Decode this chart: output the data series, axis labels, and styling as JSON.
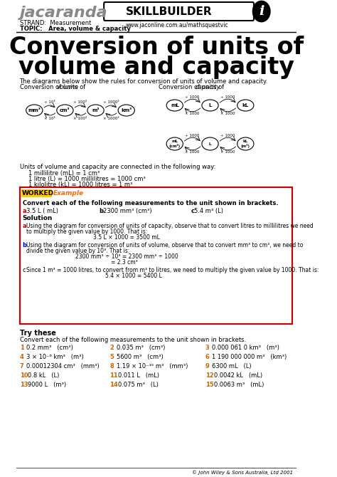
{
  "title_line1": "Conversion of units of",
  "title_line2": "volume and capacity",
  "header_jacaranda": "jacaranda",
  "header_skillbuilder": "SKILLBUILDER",
  "header_strand": "STRAND:  Measurement",
  "header_topic": "TOPIC:   Area, volume & capacity",
  "header_url": "www.jaconline.com.au/mathsquestvic",
  "bg_color": "#ffffff",
  "border_color": "#cc0000",
  "worked_color": "#ffcc00",
  "example_color": "#ff6600",
  "label_color_a": "#cc0000",
  "label_color_b": "#0000cc",
  "section_intro": "The diagrams below show the rules for conversion of units of volume and capacity.",
  "vol_label": "Conversion of units of volume",
  "cap_label": "Conversion of units of capacity",
  "connections_line1": "Units of volume and capacity are connected in the following way:",
  "connections_line2": "1 millilitre (mL) = 1 cm³",
  "connections_line3": "1 litre (L) = 1000 millilitres = 1000 cm³",
  "connections_line4": "1 kilolitre (kL) = 1000 litres = 1 m³",
  "worked_example_title": "Convert each of the following measurements to the unit shown in brackets.",
  "try_these_title": "Try these",
  "try_these_intro": "Convert each of the following measurements to the unit shown in brackets.",
  "try_items": [
    [
      "1  0.2 mm³   (cm³)",
      "2  0.035 m³   (cm³)",
      "3  0.000 061 0 km³   (m³)"
    ],
    [
      "4  3 × 10⁻⁶ km³   (m³)",
      "5  5600 m³   (cm³)",
      "6  1 190 000 000 m³   (km³)"
    ],
    [
      "7  0.00012304 cm³   (mm³)",
      "8  1.19 × 10⁻¹⁵ m³   (mm³)",
      "9  6300 mL   (L)"
    ],
    [
      "10  0.8 kL   (L)",
      "11  0.011 L   (mL)",
      "12  0.0042 kL   (mL)"
    ],
    [
      "13  9000 L   (m³)",
      "14  0.075 m³   (L)",
      "15  0.0063 m³   (mL)"
    ]
  ],
  "copyright": "© John Wiley & Sons Australia, Ltd 2001"
}
